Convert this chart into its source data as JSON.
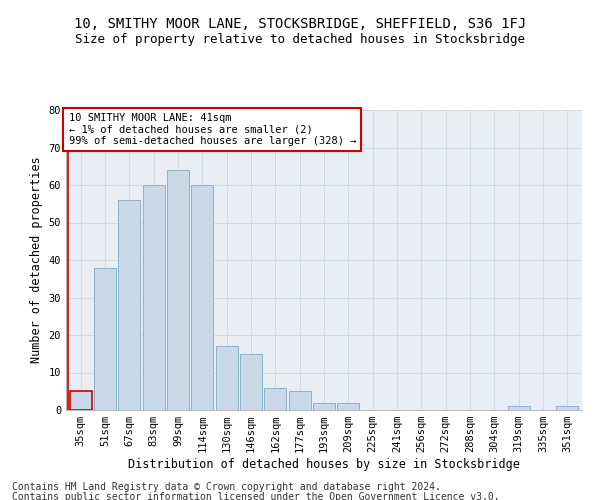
{
  "title1": "10, SMITHY MOOR LANE, STOCKSBRIDGE, SHEFFIELD, S36 1FJ",
  "title2": "Size of property relative to detached houses in Stocksbridge",
  "xlabel": "Distribution of detached houses by size in Stocksbridge",
  "ylabel": "Number of detached properties",
  "footer1": "Contains HM Land Registry data © Crown copyright and database right 2024.",
  "footer2": "Contains public sector information licensed under the Open Government Licence v3.0.",
  "categories": [
    "35sqm",
    "51sqm",
    "67sqm",
    "83sqm",
    "99sqm",
    "114sqm",
    "130sqm",
    "146sqm",
    "162sqm",
    "177sqm",
    "193sqm",
    "209sqm",
    "225sqm",
    "241sqm",
    "256sqm",
    "272sqm",
    "288sqm",
    "304sqm",
    "319sqm",
    "335sqm",
    "351sqm"
  ],
  "values": [
    5,
    38,
    56,
    60,
    64,
    60,
    17,
    15,
    6,
    5,
    2,
    2,
    0,
    0,
    0,
    0,
    0,
    0,
    1,
    0,
    1
  ],
  "bar_color": "#c9d9e8",
  "bar_edge_color": "#8ab4cc",
  "highlight_bar_index": 0,
  "highlight_bar_edge_color": "#cc0000",
  "annotation_box_text": "10 SMITHY MOOR LANE: 41sqm\n← 1% of detached houses are smaller (2)\n99% of semi-detached houses are larger (328) →",
  "annotation_box_facecolor": "white",
  "annotation_box_edge_color": "#cc0000",
  "ylim": [
    0,
    80
  ],
  "yticks": [
    0,
    10,
    20,
    30,
    40,
    50,
    60,
    70,
    80
  ],
  "grid_color": "#d0d8e0",
  "background_color": "#e8eef4",
  "title1_fontsize": 10,
  "title2_fontsize": 9,
  "xlabel_fontsize": 8.5,
  "ylabel_fontsize": 8.5,
  "tick_fontsize": 7.5,
  "annotation_fontsize": 7.5,
  "footer_fontsize": 7
}
